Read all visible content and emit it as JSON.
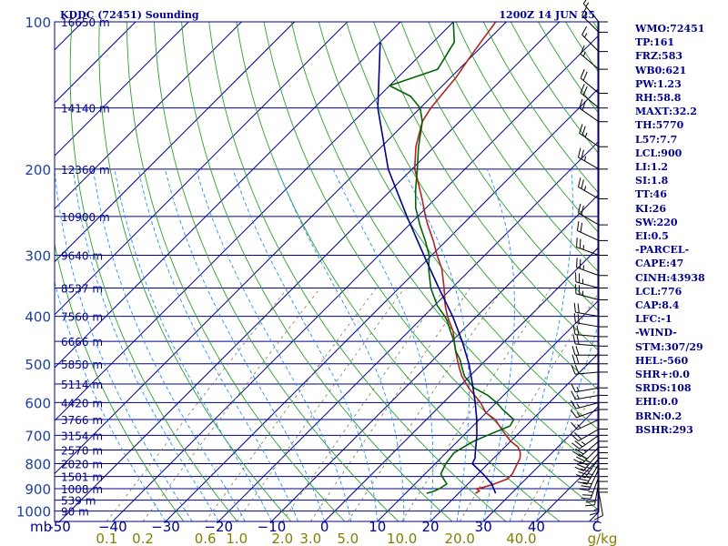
{
  "chart_data": {
    "type": "skew-t log-p",
    "title_left": "KDDC (72451) Sounding",
    "title_right": "1200Z 14 JUN 25",
    "pressure_axis": {
      "unit": "mb",
      "ticks": [
        100,
        200,
        300,
        400,
        500,
        600,
        700,
        800,
        900,
        1000
      ],
      "range": [
        1050,
        100
      ]
    },
    "temperature_axis": {
      "unit": "C",
      "ticks": [
        -50,
        -40,
        -30,
        -20,
        -10,
        0,
        10,
        20,
        30,
        40
      ],
      "tick_labels": [
        "-50",
        "−40",
        "−30",
        "−20",
        "−10",
        "0",
        "10",
        "20",
        "30",
        "40"
      ],
      "unit_label": "C"
    },
    "mixing_ratio_axis": {
      "unit": "g/kg",
      "labels": [
        "0.1",
        "0.2",
        "0.6",
        "1.0",
        "2.0",
        "3.0",
        "5.0",
        "10.0",
        "20.0",
        "40.0"
      ],
      "unit_label": "g/kg"
    },
    "height_labels": [
      {
        "p": 100,
        "label": "16650 m"
      },
      {
        "p": 150,
        "label": "14140 m"
      },
      {
        "p": 200,
        "label": "12360 m"
      },
      {
        "p": 250,
        "label": "10900 m"
      },
      {
        "p": 300,
        "label": "9640 m"
      },
      {
        "p": 350,
        "label": "8537 m"
      },
      {
        "p": 400,
        "label": "7560 m"
      },
      {
        "p": 450,
        "label": "6666 m"
      },
      {
        "p": 500,
        "label": "5850 m"
      },
      {
        "p": 550,
        "label": "5114 m"
      },
      {
        "p": 600,
        "label": "4420 m"
      },
      {
        "p": 650,
        "label": "3766 m"
      },
      {
        "p": 700,
        "label": "3154 m"
      },
      {
        "p": 750,
        "label": "2570 m"
      },
      {
        "p": 800,
        "label": "2020 m"
      },
      {
        "p": 850,
        "label": "1501 m"
      },
      {
        "p": 900,
        "label": "1008 m"
      },
      {
        "p": 950,
        "label": "539 m"
      },
      {
        "p": 1000,
        "label": "90 m"
      }
    ],
    "series": [
      {
        "name": "Temperature",
        "color": "#b22222",
        "points": [
          [
            920,
            23.2
          ],
          [
            910,
            23.5
          ],
          [
            900,
            22.5
          ],
          [
            895,
            23.5
          ],
          [
            880,
            25.0
          ],
          [
            860,
            26.5
          ],
          [
            840,
            26.5
          ],
          [
            800,
            25.5
          ],
          [
            780,
            25.0
          ],
          [
            760,
            24.0
          ],
          [
            740,
            22.5
          ],
          [
            720,
            20.0
          ],
          [
            700,
            18.0
          ],
          [
            670,
            15.0
          ],
          [
            650,
            13.0
          ],
          [
            630,
            10.0
          ],
          [
            600,
            7.0
          ],
          [
            580,
            4.5
          ],
          [
            560,
            2.0
          ],
          [
            530,
            -1.5
          ],
          [
            510,
            -3.5
          ],
          [
            490,
            -5.5
          ],
          [
            470,
            -7.5
          ],
          [
            450,
            -9.5
          ],
          [
            430,
            -11.5
          ],
          [
            400,
            -15.5
          ],
          [
            380,
            -18.0
          ],
          [
            350,
            -21.5
          ],
          [
            320,
            -25.5
          ],
          [
            300,
            -29.0
          ],
          [
            280,
            -32.5
          ],
          [
            260,
            -36.5
          ],
          [
            250,
            -38.5
          ],
          [
            230,
            -42.5
          ],
          [
            210,
            -47.0
          ],
          [
            200,
            -49.5
          ],
          [
            180,
            -53.5
          ],
          [
            160,
            -57.0
          ],
          [
            150,
            -58.0
          ],
          [
            140,
            -58.5
          ],
          [
            130,
            -59.0
          ],
          [
            120,
            -60.0
          ],
          [
            110,
            -61.0
          ],
          [
            100,
            -62.0
          ]
        ]
      },
      {
        "name": "Dewpoint",
        "color": "#006400",
        "points": [
          [
            920,
            14.0
          ],
          [
            910,
            15.0
          ],
          [
            900,
            15.5
          ],
          [
            880,
            16.0
          ],
          [
            860,
            14.5
          ],
          [
            840,
            13.0
          ],
          [
            800,
            12.0
          ],
          [
            760,
            11.5
          ],
          [
            720,
            13.0
          ],
          [
            700,
            14.5
          ],
          [
            670,
            17.0
          ],
          [
            650,
            16.5
          ],
          [
            620,
            12.5
          ],
          [
            600,
            10.0
          ],
          [
            580,
            7.0
          ],
          [
            560,
            3.0
          ],
          [
            530,
            -1.0
          ],
          [
            510,
            -3.0
          ],
          [
            490,
            -5.0
          ],
          [
            470,
            -7.5
          ],
          [
            450,
            -9.5
          ],
          [
            430,
            -12.0
          ],
          [
            410,
            -14.5
          ],
          [
            400,
            -16.0
          ],
          [
            380,
            -19.5
          ],
          [
            350,
            -24.0
          ],
          [
            320,
            -28.0
          ],
          [
            300,
            -30.5
          ],
          [
            280,
            -34.0
          ],
          [
            260,
            -38.0
          ],
          [
            240,
            -42.0
          ],
          [
            220,
            -45.5
          ],
          [
            200,
            -49.0
          ],
          [
            180,
            -53.0
          ],
          [
            160,
            -57.0
          ],
          [
            150,
            -60.0
          ],
          [
            142,
            -64.0
          ],
          [
            135,
            -70.0
          ],
          [
            125,
            -64.0
          ],
          [
            110,
            -66.0
          ],
          [
            100,
            -70.0
          ]
        ]
      },
      {
        "name": "Parcel",
        "color": "#00008b",
        "points": [
          [
            920,
            27.0
          ],
          [
            880,
            24.5
          ],
          [
            840,
            21.0
          ],
          [
            800,
            17.0
          ],
          [
            780,
            16.5
          ],
          [
            760,
            15.5
          ],
          [
            700,
            12.5
          ],
          [
            650,
            9.5
          ],
          [
            600,
            6.0
          ],
          [
            550,
            2.0
          ],
          [
            500,
            -2.5
          ],
          [
            450,
            -8.0
          ],
          [
            400,
            -14.5
          ],
          [
            350,
            -22.5
          ],
          [
            300,
            -31.5
          ],
          [
            250,
            -42.0
          ],
          [
            200,
            -54.5
          ],
          [
            150,
            -68.0
          ],
          [
            110,
            -80.0
          ]
        ]
      }
    ],
    "wind_profile": [
      {
        "p": 915,
        "dir": 170,
        "kt": 10
      },
      {
        "p": 900,
        "dir": 180,
        "kt": 15
      },
      {
        "p": 870,
        "dir": 190,
        "kt": 20
      },
      {
        "p": 850,
        "dir": 200,
        "kt": 25
      },
      {
        "p": 820,
        "dir": 205,
        "kt": 30
      },
      {
        "p": 800,
        "dir": 210,
        "kt": 35
      },
      {
        "p": 780,
        "dir": 215,
        "kt": 35
      },
      {
        "p": 760,
        "dir": 220,
        "kt": 35
      },
      {
        "p": 740,
        "dir": 225,
        "kt": 30
      },
      {
        "p": 720,
        "dir": 230,
        "kt": 25
      },
      {
        "p": 700,
        "dir": 235,
        "kt": 25
      },
      {
        "p": 680,
        "dir": 240,
        "kt": 20
      },
      {
        "p": 650,
        "dir": 245,
        "kt": 15
      },
      {
        "p": 620,
        "dir": 250,
        "kt": 15
      },
      {
        "p": 600,
        "dir": 255,
        "kt": 15
      },
      {
        "p": 580,
        "dir": 260,
        "kt": 15
      },
      {
        "p": 560,
        "dir": 260,
        "kt": 15
      },
      {
        "p": 520,
        "dir": 265,
        "kt": 20
      },
      {
        "p": 500,
        "dir": 270,
        "kt": 20
      },
      {
        "p": 480,
        "dir": 270,
        "kt": 20
      },
      {
        "p": 460,
        "dir": 275,
        "kt": 20
      },
      {
        "p": 440,
        "dir": 275,
        "kt": 20
      },
      {
        "p": 420,
        "dir": 280,
        "kt": 20
      },
      {
        "p": 400,
        "dir": 280,
        "kt": 20
      },
      {
        "p": 370,
        "dir": 285,
        "kt": 25
      },
      {
        "p": 350,
        "dir": 285,
        "kt": 25
      },
      {
        "p": 330,
        "dir": 290,
        "kt": 25
      },
      {
        "p": 300,
        "dir": 290,
        "kt": 25
      },
      {
        "p": 280,
        "dir": 295,
        "kt": 20
      },
      {
        "p": 260,
        "dir": 300,
        "kt": 20
      },
      {
        "p": 230,
        "dir": 300,
        "kt": 25
      },
      {
        "p": 200,
        "dir": 300,
        "kt": 25
      },
      {
        "p": 180,
        "dir": 305,
        "kt": 25
      },
      {
        "p": 160,
        "dir": 305,
        "kt": 20
      },
      {
        "p": 150,
        "dir": 310,
        "kt": 20
      },
      {
        "p": 140,
        "dir": 310,
        "kt": 20
      },
      {
        "p": 125,
        "dir": 310,
        "kt": 15
      },
      {
        "p": 115,
        "dir": 315,
        "kt": 15
      },
      {
        "p": 105,
        "dir": 315,
        "kt": 15
      },
      {
        "p": 100,
        "dir": 320,
        "kt": 15
      }
    ],
    "indices": [
      "WMO:72451",
      "TP:161",
      "FRZ:583",
      "WB0:621",
      "PW:1.23",
      "RH:58.8",
      "MAXT:32.2",
      "TH:5770",
      "L57:7.7",
      "LCL:900",
      "LI:1.2",
      "SI:1.8",
      "TT:46",
      "KI:26",
      "SW:220",
      "EI:0.5",
      "-PARCEL-",
      "CAPE:47",
      "CINH:43938",
      "LCL:776",
      "CAP:8.4",
      "LFC:-1",
      "-WIND-",
      "STM:307/29",
      "HEL:-560",
      "SHR+:0.0",
      "SRDS:108",
      "EHI:0.0",
      "BRN:0.2",
      "BSHR:293"
    ],
    "colors": {
      "isobar": "#00008b",
      "isotherm": "#00008b",
      "dry_adiabat": "#2ca02c",
      "moist_adiabat": "#1e90ff",
      "mixing_ratio": "#7a7a4a",
      "mixing_label": "#808000",
      "text": "#00008b",
      "pressure_tick_label": "#1e3fa0"
    }
  }
}
